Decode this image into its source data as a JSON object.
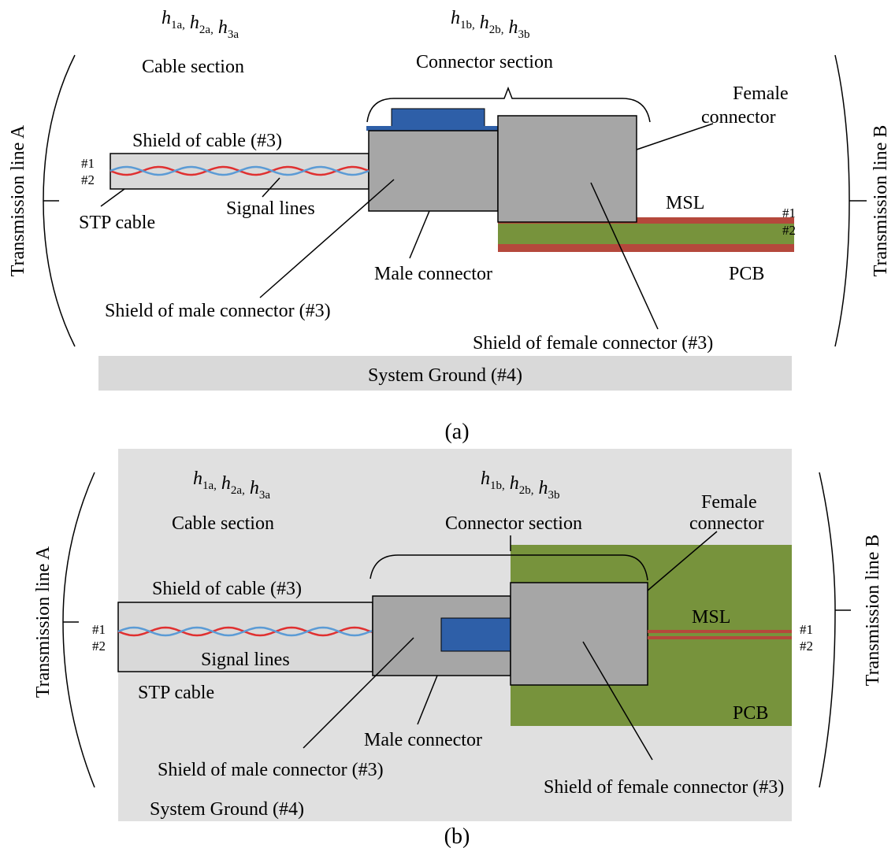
{
  "panel_a": {
    "caption": "(a)",
    "params_cable": [
      {
        "base": "h",
        "sub": "1a,"
      },
      {
        "base": "h",
        "sub": "2a,"
      },
      {
        "base": "h",
        "sub": "3a"
      }
    ],
    "params_connector": [
      {
        "base": "h",
        "sub": "1b,"
      },
      {
        "base": "h",
        "sub": "2b,"
      },
      {
        "base": "h",
        "sub": "3b"
      }
    ],
    "line_a": "Transmission line A",
    "line_b": "Transmission line B",
    "cable_section": "Cable section",
    "connector_section": "Connector section",
    "female_connector": [
      "Female",
      "connector"
    ],
    "shield_cable": "Shield of cable (#3)",
    "cable_pins": [
      "#1",
      "#2"
    ],
    "stp_cable": "STP cable",
    "signal_lines": "Signal lines",
    "msl": "MSL",
    "msl_pins": [
      "#1",
      "#2"
    ],
    "male_connector": "Male connector",
    "pcb": "PCB",
    "shield_male": "Shield of male connector (#3)",
    "shield_female": "Shield of female connector (#3)",
    "system_ground": "System Ground (#4)"
  },
  "panel_b": {
    "caption": "(b)",
    "params_cable": [
      {
        "base": "h",
        "sub": "1a,"
      },
      {
        "base": "h",
        "sub": "2a,"
      },
      {
        "base": "h",
        "sub": "3a"
      }
    ],
    "params_connector": [
      {
        "base": "h",
        "sub": "1b,"
      },
      {
        "base": "h",
        "sub": "2b,"
      },
      {
        "base": "h",
        "sub": "3b"
      }
    ],
    "line_a": "Transmission line A",
    "line_b": "Transmission line B",
    "cable_section": "Cable section",
    "connector_section": "Connector section",
    "female_connector": [
      "Female",
      "connector"
    ],
    "shield_cable": "Shield of cable (#3)",
    "cable_pins": [
      "#1",
      "#2"
    ],
    "stp_cable": "STP cable",
    "signal_lines": "Signal lines",
    "msl": "MSL",
    "msl_pins": [
      "#1",
      "#2"
    ],
    "male_connector": "Male connector",
    "pcb": "PCB",
    "shield_male": "Shield of male connector (#3)",
    "shield_female": "Shield of female connector (#3)",
    "system_ground": "System Ground (#4)"
  }
}
